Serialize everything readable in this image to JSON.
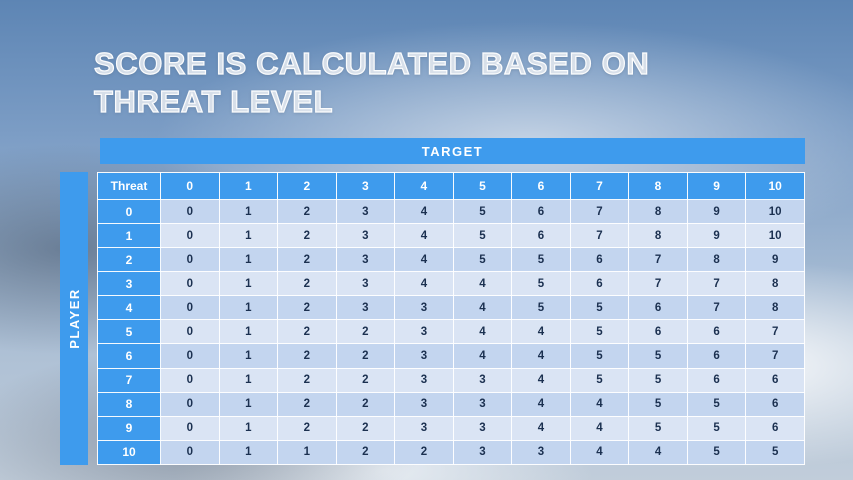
{
  "slide": {
    "title_line1": "SCORE IS CALCULATED BASED ON",
    "title_line2": "THREAT LEVEL"
  },
  "table": {
    "target_label": "TARGET",
    "player_label": "PLAYER",
    "corner_label": "Threat",
    "columns": [
      "0",
      "1",
      "2",
      "3",
      "4",
      "5",
      "6",
      "7",
      "8",
      "9",
      "10"
    ],
    "rows": [
      {
        "label": "0",
        "values": [
          0,
          1,
          2,
          3,
          4,
          5,
          6,
          7,
          8,
          9,
          10
        ]
      },
      {
        "label": "1",
        "values": [
          0,
          1,
          2,
          3,
          4,
          5,
          6,
          7,
          8,
          9,
          10
        ]
      },
      {
        "label": "2",
        "values": [
          0,
          1,
          2,
          3,
          4,
          5,
          5,
          6,
          7,
          8,
          9
        ]
      },
      {
        "label": "3",
        "values": [
          0,
          1,
          2,
          3,
          4,
          4,
          5,
          6,
          7,
          7,
          8
        ]
      },
      {
        "label": "4",
        "values": [
          0,
          1,
          2,
          3,
          3,
          4,
          5,
          5,
          6,
          7,
          8
        ]
      },
      {
        "label": "5",
        "values": [
          0,
          1,
          2,
          2,
          3,
          4,
          4,
          5,
          6,
          6,
          7
        ]
      },
      {
        "label": "6",
        "values": [
          0,
          1,
          2,
          2,
          3,
          4,
          4,
          5,
          5,
          6,
          7
        ]
      },
      {
        "label": "7",
        "values": [
          0,
          1,
          2,
          2,
          3,
          3,
          4,
          5,
          5,
          6,
          6
        ]
      },
      {
        "label": "8",
        "values": [
          0,
          1,
          2,
          2,
          3,
          3,
          4,
          4,
          5,
          5,
          6
        ]
      },
      {
        "label": "9",
        "values": [
          0,
          1,
          2,
          2,
          3,
          3,
          4,
          4,
          5,
          5,
          6
        ]
      },
      {
        "label": "10",
        "values": [
          0,
          1,
          1,
          2,
          2,
          3,
          3,
          4,
          4,
          5,
          5
        ]
      }
    ]
  },
  "colors": {
    "accent_blue": "#3e9bed",
    "row_dark": "#c3d5ef",
    "row_light": "#dae4f4",
    "cell_text": "#1b3050"
  }
}
